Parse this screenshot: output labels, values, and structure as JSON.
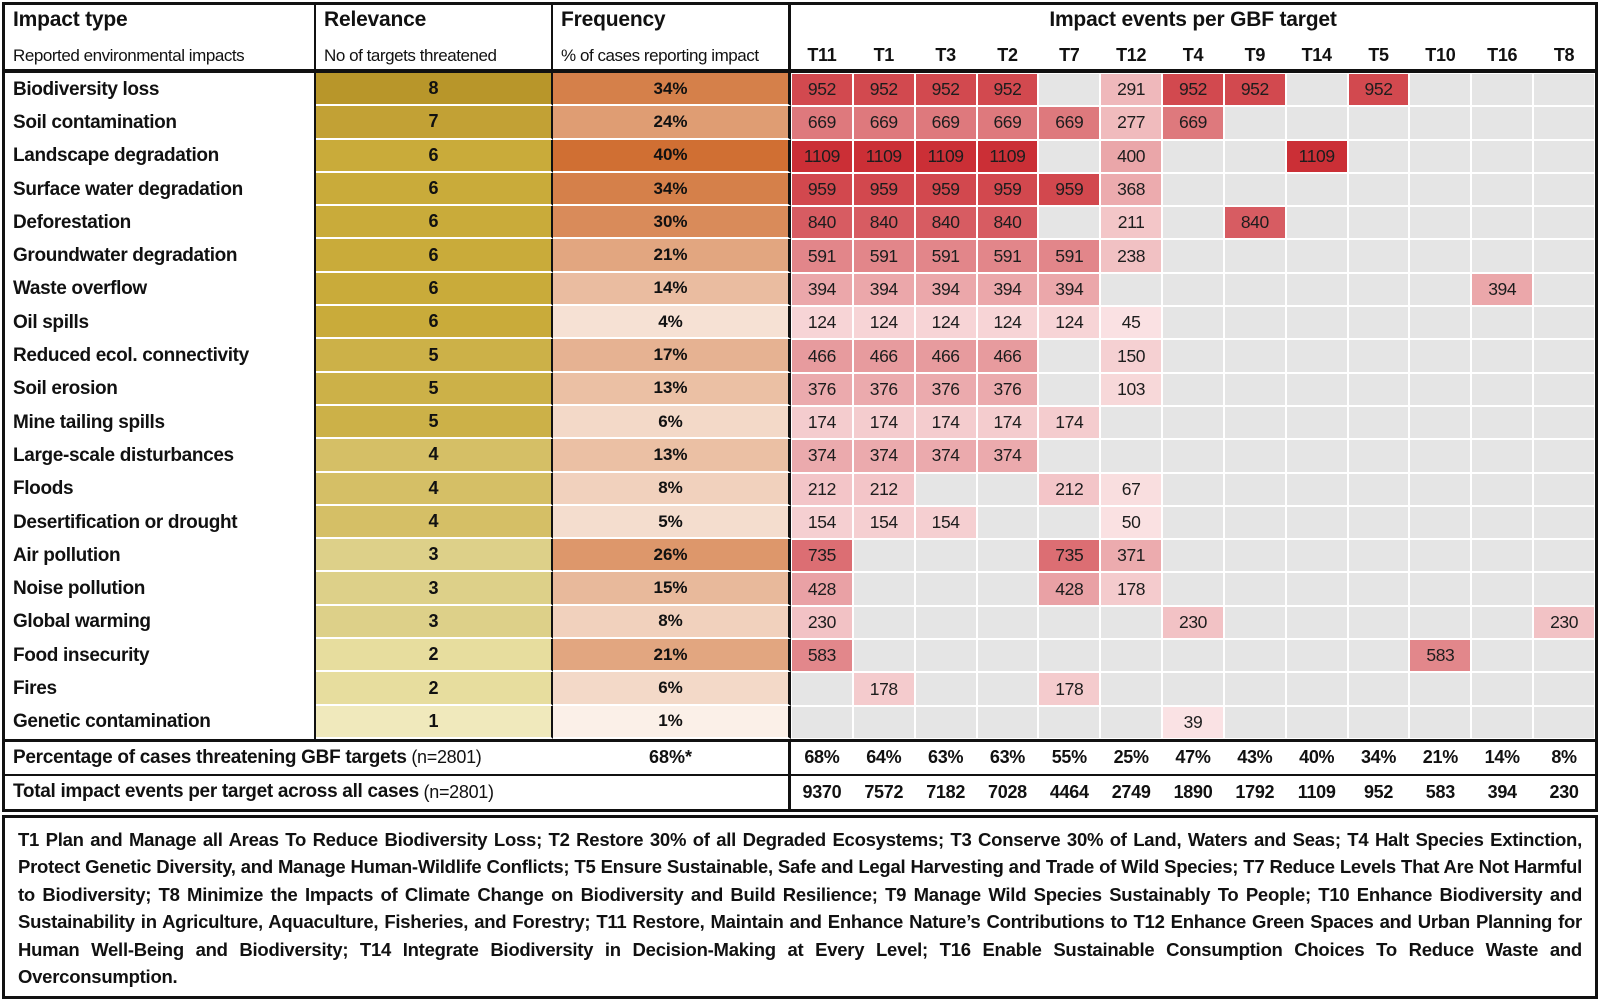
{
  "header": {
    "impact": {
      "title": "Impact type",
      "subtitle": "Reported environmental impacts"
    },
    "relevance": {
      "title": "Relevance",
      "subtitle": "No of targets threatened"
    },
    "frequency": {
      "title": "Frequency",
      "subtitle": "% of cases reporting impact"
    },
    "matrix_title": "Impact events per GBF target"
  },
  "chart_data": {
    "type": "heatmap",
    "title": "Impact events per GBF target",
    "columns": [
      "T11",
      "T1",
      "T3",
      "T2",
      "T7",
      "T12",
      "T4",
      "T9",
      "T14",
      "T5",
      "T10",
      "T16",
      "T8"
    ],
    "rows": [
      {
        "label": "Biodiversity loss",
        "relevance": 8,
        "frequency_pct": 34,
        "cells": [
          952,
          952,
          952,
          952,
          null,
          291,
          952,
          952,
          null,
          952,
          null,
          null,
          null
        ]
      },
      {
        "label": "Soil contamination",
        "relevance": 7,
        "frequency_pct": 24,
        "cells": [
          669,
          669,
          669,
          669,
          669,
          277,
          669,
          null,
          null,
          null,
          null,
          null,
          null
        ]
      },
      {
        "label": "Landscape degradation",
        "relevance": 6,
        "frequency_pct": 40,
        "cells": [
          1109,
          1109,
          1109,
          1109,
          null,
          400,
          null,
          null,
          1109,
          null,
          null,
          null,
          null
        ]
      },
      {
        "label": "Surface water degradation",
        "relevance": 6,
        "frequency_pct": 34,
        "cells": [
          959,
          959,
          959,
          959,
          959,
          368,
          null,
          null,
          null,
          null,
          null,
          null,
          null
        ]
      },
      {
        "label": "Deforestation",
        "relevance": 6,
        "frequency_pct": 30,
        "cells": [
          840,
          840,
          840,
          840,
          null,
          211,
          null,
          840,
          null,
          null,
          null,
          null,
          null
        ]
      },
      {
        "label": "Groundwater degradation",
        "relevance": 6,
        "frequency_pct": 21,
        "cells": [
          591,
          591,
          591,
          591,
          591,
          238,
          null,
          null,
          null,
          null,
          null,
          null,
          null
        ]
      },
      {
        "label": "Waste overflow",
        "relevance": 6,
        "frequency_pct": 14,
        "cells": [
          394,
          394,
          394,
          394,
          394,
          null,
          null,
          null,
          null,
          null,
          null,
          394,
          null
        ]
      },
      {
        "label": "Oil spills",
        "relevance": 6,
        "frequency_pct": 4,
        "cells": [
          124,
          124,
          124,
          124,
          124,
          45,
          null,
          null,
          null,
          null,
          null,
          null,
          null
        ]
      },
      {
        "label": "Reduced ecol. connectivity",
        "relevance": 5,
        "frequency_pct": 17,
        "cells": [
          466,
          466,
          466,
          466,
          null,
          150,
          null,
          null,
          null,
          null,
          null,
          null,
          null
        ]
      },
      {
        "label": "Soil erosion",
        "relevance": 5,
        "frequency_pct": 13,
        "cells": [
          376,
          376,
          376,
          376,
          null,
          103,
          null,
          null,
          null,
          null,
          null,
          null,
          null
        ]
      },
      {
        "label": "Mine tailing spills",
        "relevance": 5,
        "frequency_pct": 6,
        "cells": [
          174,
          174,
          174,
          174,
          174,
          null,
          null,
          null,
          null,
          null,
          null,
          null,
          null
        ]
      },
      {
        "label": "Large-scale disturbances",
        "relevance": 4,
        "frequency_pct": 13,
        "cells": [
          374,
          374,
          374,
          374,
          null,
          null,
          null,
          null,
          null,
          null,
          null,
          null,
          null
        ]
      },
      {
        "label": "Floods",
        "relevance": 4,
        "frequency_pct": 8,
        "cells": [
          212,
          212,
          null,
          null,
          212,
          67,
          null,
          null,
          null,
          null,
          null,
          null,
          null
        ]
      },
      {
        "label": "Desertification or drought",
        "relevance": 4,
        "frequency_pct": 5,
        "cells": [
          154,
          154,
          154,
          null,
          null,
          50,
          null,
          null,
          null,
          null,
          null,
          null,
          null
        ]
      },
      {
        "label": "Air pollution",
        "relevance": 3,
        "frequency_pct": 26,
        "cells": [
          735,
          null,
          null,
          null,
          735,
          371,
          null,
          null,
          null,
          null,
          null,
          null,
          null
        ]
      },
      {
        "label": "Noise pollution",
        "relevance": 3,
        "frequency_pct": 15,
        "cells": [
          428,
          null,
          null,
          null,
          428,
          178,
          null,
          null,
          null,
          null,
          null,
          null,
          null
        ]
      },
      {
        "label": "Global warming",
        "relevance": 3,
        "frequency_pct": 8,
        "cells": [
          230,
          null,
          null,
          null,
          null,
          null,
          230,
          null,
          null,
          null,
          null,
          null,
          230
        ]
      },
      {
        "label": "Food insecurity",
        "relevance": 2,
        "frequency_pct": 21,
        "cells": [
          583,
          null,
          null,
          null,
          null,
          null,
          null,
          null,
          null,
          null,
          583,
          null,
          null
        ]
      },
      {
        "label": "Fires",
        "relevance": 2,
        "frequency_pct": 6,
        "cells": [
          null,
          178,
          null,
          null,
          178,
          null,
          null,
          null,
          null,
          null,
          null,
          null,
          null
        ]
      },
      {
        "label": "Genetic contamination",
        "relevance": 1,
        "frequency_pct": 1,
        "cells": [
          null,
          null,
          null,
          null,
          null,
          null,
          39,
          null,
          null,
          null,
          null,
          null,
          null
        ]
      }
    ],
    "percent_cases_per_target": [
      "68%",
      "64%",
      "63%",
      "63%",
      "55%",
      "25%",
      "47%",
      "43%",
      "40%",
      "34%",
      "21%",
      "14%",
      "8%"
    ],
    "total_events_per_target": [
      "9370",
      "7572",
      "7182",
      "7028",
      "4464",
      "2749",
      "1890",
      "1792",
      "1109",
      "952",
      "583",
      "394",
      "230"
    ]
  },
  "footer": {
    "pct_label": "Percentage of cases threatening GBF targets",
    "pct_n": " (n=2801)",
    "pct_overall": "68%*",
    "total_label": "Total impact events per target across all cases",
    "total_n": " (n=2801)"
  },
  "legend": {
    "text": "T1 Plan and Manage all Areas To Reduce Biodiversity Loss; T2 Restore 30% of all Degraded Ecosystems; T3 Conserve 30% of Land, Waters and Seas; T4 Halt Species Extinction, Protect Genetic Diversity, and Manage Human-Wildlife Conflicts; T5 Ensure Sustainable, Safe and Legal Harvesting and Trade of Wild Species; T7 Reduce Levels That Are Not Harmful to Biodiversity; T8 Minimize the Impacts of Climate Change on Biodiversity and Build Resilience; T9 Manage Wild Species Sustainably To People; T10 Enhance Biodiversity and Sustainability in Agriculture, Aquaculture, Fisheries, and Forestry; T11 Restore, Maintain and Enhance Nature’s Contributions to T12 Enhance Green Spaces and Urban Planning for Human Well-Being and Biodiversity; T14 Integrate Biodiversity in Decision-Making at Every Level; T16 Enable Sustainable Consumption Choices To Reduce Waste and Overconsumption."
  },
  "colors": {
    "relevance_by_value": {
      "1": "#f0e9bc",
      "2": "#e7dd9e",
      "3": "#ddd089",
      "4": "#d5bf66",
      "5": "#ccb148",
      "6": "#c9ab3a",
      "7": "#c2a135",
      "8": "#b8962a"
    },
    "frequency_scale": {
      "light": "#fdf7f2",
      "dark": "#d06f33",
      "max_pct": 40,
      "gamma": 0.8
    },
    "heat_scale": {
      "light": "#fce9ea",
      "dark": "#cb2f36",
      "max": 1109
    },
    "empty_cell": "#e5e5e5",
    "border": "#111111"
  }
}
